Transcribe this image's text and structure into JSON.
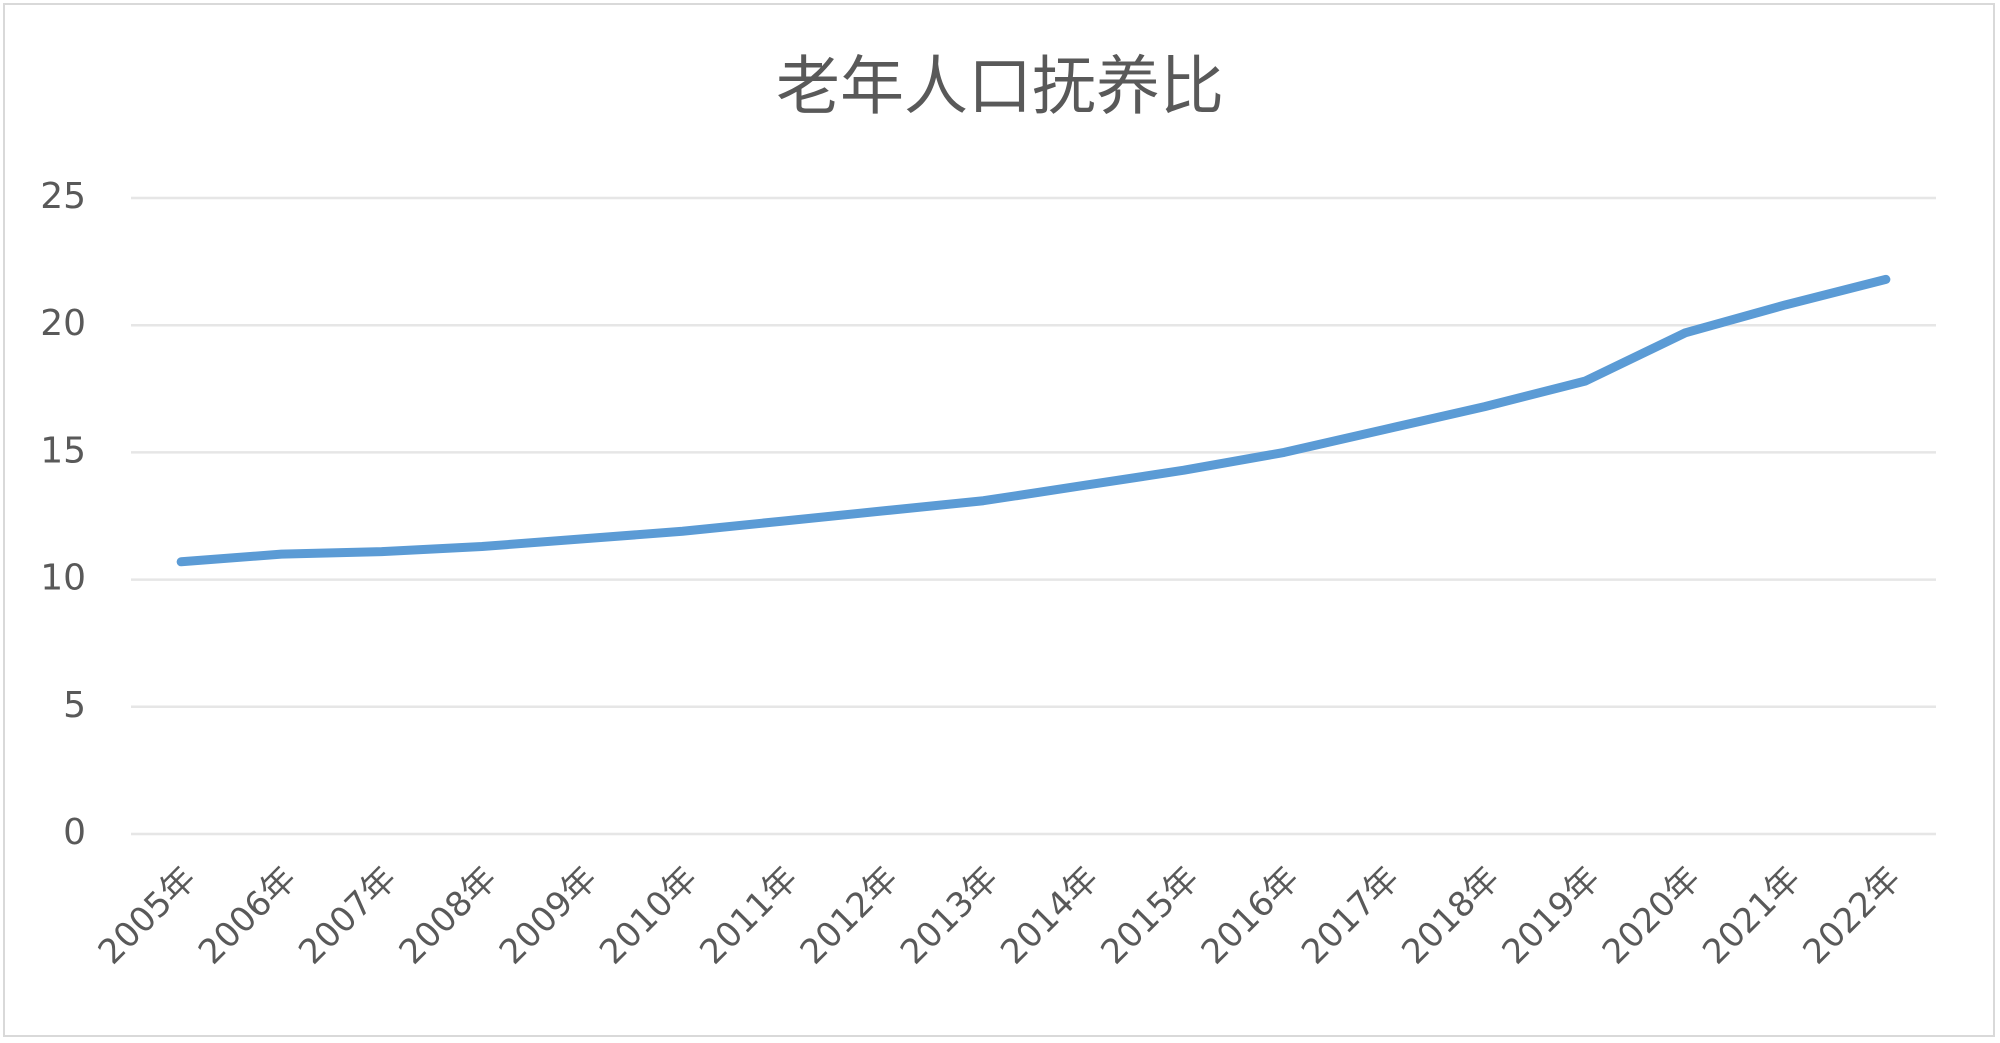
{
  "chart_data": {
    "type": "line",
    "title": "老年人口抚养比",
    "categories": [
      "2005年",
      "2006年",
      "2007年",
      "2008年",
      "2009年",
      "2010年",
      "2011年",
      "2012年",
      "2013年",
      "2014年",
      "2015年",
      "2016年",
      "2017年",
      "2018年",
      "2019年",
      "2020年",
      "2021年",
      "2022年"
    ],
    "values": [
      10.7,
      11.0,
      11.1,
      11.3,
      11.6,
      11.9,
      12.3,
      12.7,
      13.1,
      13.7,
      14.3,
      15.0,
      15.9,
      16.8,
      17.8,
      19.7,
      20.8,
      21.8
    ],
    "color": "#5b9bd5",
    "ylim": [
      0,
      25
    ],
    "yticks": [
      0,
      5,
      10,
      15,
      20,
      25
    ],
    "grid": true
  }
}
